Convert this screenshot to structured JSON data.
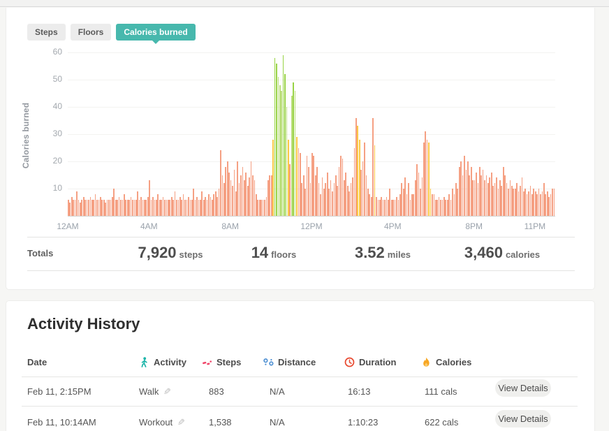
{
  "tabs": {
    "steps": "Steps",
    "floors": "Floors",
    "calories": "Calories burned",
    "active": "calories"
  },
  "chart_data": {
    "type": "bar",
    "title": "Calories burned by 5-minute interval, 12AM-11:55PM",
    "ylabel": "Calories burned",
    "xlabel": "",
    "yticks": [
      10,
      20,
      30,
      40,
      50,
      60
    ],
    "ylim": [
      0,
      62
    ],
    "grid": true,
    "interval_minutes": 5,
    "x_labels": [
      {
        "label": "12AM",
        "hour": 0
      },
      {
        "label": "4AM",
        "hour": 4
      },
      {
        "label": "8AM",
        "hour": 8
      },
      {
        "label": "12PM",
        "hour": 12
      },
      {
        "label": "4PM",
        "hour": 16
      },
      {
        "label": "8PM",
        "hour": 20
      },
      {
        "label": "11PM",
        "hour": 23
      }
    ],
    "color_map": {
      "s": "#f5a083",
      "y": "#fbc844",
      "l": "#bcdf7d",
      "g": "#98d344"
    },
    "zone_legend": {
      "s": "sedentary",
      "y": "lightly-active",
      "l": "fairly-active",
      "g": "very-active"
    },
    "values": [
      6,
      5,
      7,
      6,
      6,
      9,
      6,
      5,
      6,
      7,
      6,
      6,
      6,
      7,
      6,
      6,
      8,
      6,
      6,
      7,
      6,
      6,
      5,
      6,
      6,
      6,
      7,
      10,
      6,
      6,
      7,
      6,
      6,
      8,
      6,
      6,
      6,
      7,
      6,
      6,
      6,
      9,
      6,
      7,
      6,
      6,
      6,
      7,
      13,
      6,
      7,
      6,
      6,
      8,
      6,
      6,
      7,
      6,
      6,
      6,
      6,
      7,
      6,
      9,
      6,
      6,
      7,
      6,
      8,
      6,
      6,
      7,
      6,
      6,
      10,
      6,
      7,
      6,
      6,
      9,
      6,
      7,
      6,
      8,
      7,
      6,
      8,
      9,
      7,
      10,
      24,
      15,
      12,
      18,
      20,
      16,
      13,
      11,
      17,
      9,
      20,
      12,
      15,
      18,
      13,
      16,
      11,
      14,
      20,
      15,
      13,
      8,
      6,
      6,
      6,
      6,
      6,
      7,
      13,
      15,
      15,
      28,
      58,
      56,
      51,
      48,
      46,
      59,
      52,
      40,
      28,
      19,
      44,
      49,
      46,
      29,
      25,
      23,
      12,
      15,
      10,
      22,
      18,
      12,
      23,
      22,
      15,
      18,
      12,
      8,
      14,
      10,
      12,
      16,
      10,
      13,
      9,
      12,
      15,
      11,
      18,
      22,
      21,
      13,
      16,
      11,
      9,
      12,
      14,
      25,
      36,
      33,
      28,
      17,
      20,
      27,
      15,
      10,
      8,
      7,
      36,
      26,
      7,
      6,
      6,
      7,
      6,
      6,
      7,
      6,
      10,
      6,
      6,
      6,
      7,
      6,
      8,
      12,
      10,
      14,
      8,
      12,
      6,
      8,
      8,
      13,
      19,
      16,
      10,
      14,
      27,
      31,
      28,
      27,
      10,
      8,
      8,
      6,
      6,
      7,
      6,
      6,
      7,
      6,
      6,
      8,
      6,
      10,
      8,
      12,
      10,
      18,
      20,
      15,
      22,
      17,
      20,
      15,
      18,
      13,
      13,
      16,
      12,
      18,
      15,
      17,
      13,
      15,
      12,
      14,
      16,
      11,
      12,
      14,
      10,
      13,
      11,
      18,
      15,
      12,
      10,
      13,
      11,
      10,
      10,
      12,
      9,
      11,
      14,
      9,
      10,
      8,
      9,
      11,
      8,
      10,
      9,
      8,
      10,
      8,
      9,
      12,
      8,
      9,
      7,
      8,
      10,
      10
    ],
    "colors": "sssssssssssssssssssssssssssssssssssssssssssssssssssssssssssssssssssssssssssssssssssssssssssssssssssssssssssssssssssssssssygglllgglyslglysssssssssssssssssssssssssssssssssssyyssssssssysssssssssssssssssssssssssssssssyysssssssssssssssssssssssssssssssssssssssssssssssssssssssssssssssssssssssssssssssssss"
  },
  "totals": {
    "label": "Totals",
    "items": [
      {
        "value": "7,920",
        "unit": "steps"
      },
      {
        "value": "14",
        "unit": "floors"
      },
      {
        "value": "3.52",
        "unit": "miles"
      },
      {
        "value": "3,460",
        "unit": "calories"
      }
    ]
  },
  "activity_history": {
    "title": "Activity History",
    "columns": [
      {
        "label": "Date",
        "icon": ""
      },
      {
        "label": "Activity",
        "icon": "walker-icon"
      },
      {
        "label": "Steps",
        "icon": "footprints-icon"
      },
      {
        "label": "Distance",
        "icon": "route-icon"
      },
      {
        "label": "Duration",
        "icon": "clock-icon"
      },
      {
        "label": "Calories",
        "icon": "flame-icon"
      }
    ],
    "rows": [
      {
        "date": "Feb 11, 2:15PM",
        "activity": "Walk",
        "steps": "883",
        "distance": "N/A",
        "duration": "16:13",
        "calories": "111 cals",
        "action": "View Details"
      },
      {
        "date": "Feb 11, 10:14AM",
        "activity": "Workout",
        "steps": "1,538",
        "distance": "N/A",
        "duration": "1:10:23",
        "calories": "622 cals",
        "action": "View Details"
      }
    ],
    "pencil_glyph": "✎",
    "icon_colors": {
      "walker": "#1db5a9",
      "footprints": "#f0476b",
      "route": "#4b8ed2",
      "clock": "#e84a31",
      "flame": "#f7a622"
    }
  }
}
